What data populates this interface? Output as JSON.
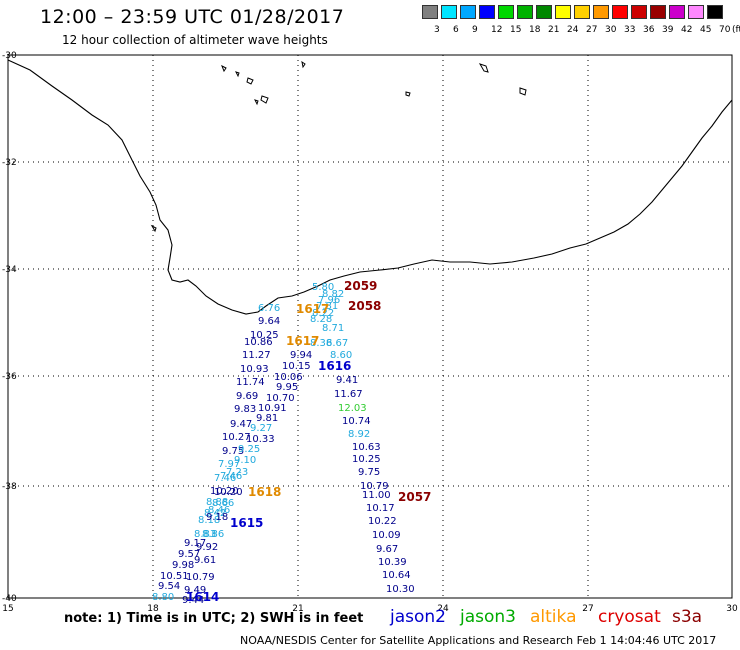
{
  "header": {
    "title": "12:00 – 23:59 UTC 01/28/2017",
    "subtitle": "12 hour collection of altimeter wave heights"
  },
  "legend": {
    "colors": [
      "#808080",
      "#00e5ff",
      "#00a8ff",
      "#0000ff",
      "#00d800",
      "#00b200",
      "#008800",
      "#ffff00",
      "#ffd000",
      "#ff9900",
      "#ff0000",
      "#cc0000",
      "#990000",
      "#cc00cc",
      "#ff88ff",
      "#000000"
    ],
    "labels": [
      "3",
      "6",
      "9",
      "12",
      "15",
      "18",
      "21",
      "24",
      "27",
      "30",
      "33",
      "36",
      "39",
      "42",
      "45",
      "70",
      "(ft)"
    ]
  },
  "axes": {
    "x_ticks": [
      "15",
      "18",
      "21",
      "24",
      "27",
      "30"
    ],
    "y_ticks": [
      "-30",
      "-32",
      "-34",
      "-36",
      "-38",
      "-40"
    ]
  },
  "passes": [
    {
      "label": "2059",
      "color": "#8b0000"
    },
    {
      "label": "2058",
      "color": "#8b0000"
    },
    {
      "label": "1617",
      "color": "#e08a00"
    },
    {
      "label": "1617",
      "color": "#e08a00"
    },
    {
      "label": "1616",
      "color": "#0000cc"
    },
    {
      "label": "1618",
      "color": "#e08a00"
    },
    {
      "label": "1615",
      "color": "#0000cc"
    },
    {
      "label": "2057",
      "color": "#8b0000"
    },
    {
      "label": "1614",
      "color": "#0000cc"
    }
  ],
  "observations": [
    {
      "v": "5.80",
      "c": "#22aadd"
    },
    {
      "v": "8.82",
      "c": "#22aadd"
    },
    {
      "v": "7.96",
      "c": "#22aadd"
    },
    {
      "v": "7.81",
      "c": "#22aadd"
    },
    {
      "v": "8.22",
      "c": "#22aadd"
    },
    {
      "v": "8.28",
      "c": "#22aadd"
    },
    {
      "v": "8.71",
      "c": "#22aadd"
    },
    {
      "v": "6.67",
      "c": "#22aadd"
    },
    {
      "v": "8.60",
      "c": "#22aadd"
    },
    {
      "v": "9.41",
      "c": "#00008b"
    },
    {
      "v": "11.67",
      "c": "#00008b"
    },
    {
      "v": "12.03",
      "c": "#33cc33"
    },
    {
      "v": "10.74",
      "c": "#00008b"
    },
    {
      "v": "8.92",
      "c": "#22aadd"
    },
    {
      "v": "10.63",
      "c": "#00008b"
    },
    {
      "v": "10.25",
      "c": "#00008b"
    },
    {
      "v": "9.75",
      "c": "#00008b"
    },
    {
      "v": "10.79",
      "c": "#00008b"
    },
    {
      "v": "11.00",
      "c": "#00008b"
    },
    {
      "v": "10.17",
      "c": "#00008b"
    },
    {
      "v": "10.22",
      "c": "#00008b"
    },
    {
      "v": "10.09",
      "c": "#00008b"
    },
    {
      "v": "9.67",
      "c": "#00008b"
    },
    {
      "v": "10.39",
      "c": "#00008b"
    },
    {
      "v": "10.64",
      "c": "#00008b"
    },
    {
      "v": "10.30",
      "c": "#00008b"
    },
    {
      "v": "6.76",
      "c": "#22aadd"
    },
    {
      "v": "9.64",
      "c": "#00008b"
    },
    {
      "v": "10.25",
      "c": "#00008b"
    },
    {
      "v": "10.86",
      "c": "#00008b"
    },
    {
      "v": "11.27",
      "c": "#00008b"
    },
    {
      "v": "10.93",
      "c": "#00008b"
    },
    {
      "v": "11.74",
      "c": "#00008b"
    },
    {
      "v": "9.69",
      "c": "#00008b"
    },
    {
      "v": "9.83",
      "c": "#00008b"
    },
    {
      "v": "9.47",
      "c": "#00008b"
    },
    {
      "v": "10.27",
      "c": "#00008b"
    },
    {
      "v": "9.75",
      "c": "#00008b"
    },
    {
      "v": "7.97",
      "c": "#22aadd"
    },
    {
      "v": "7.46",
      "c": "#22aadd"
    },
    {
      "v": "10.20",
      "c": "#00008b"
    },
    {
      "v": "8.88",
      "c": "#22aadd"
    },
    {
      "v": "8.42",
      "c": "#22aadd"
    },
    {
      "v": "8.18",
      "c": "#22aadd"
    },
    {
      "v": "8.83",
      "c": "#22aadd"
    },
    {
      "v": "9.17",
      "c": "#00008b"
    },
    {
      "v": "9.57",
      "c": "#00008b"
    },
    {
      "v": "9.98",
      "c": "#00008b"
    },
    {
      "v": "10.51",
      "c": "#00008b"
    },
    {
      "v": "9.54",
      "c": "#00008b"
    },
    {
      "v": "8.80",
      "c": "#22aadd"
    },
    {
      "v": "8.38",
      "c": "#22aadd"
    },
    {
      "v": "9.94",
      "c": "#00008b"
    },
    {
      "v": "10.15",
      "c": "#00008b"
    },
    {
      "v": "10.06",
      "c": "#00008b"
    },
    {
      "v": "9.95",
      "c": "#00008b"
    },
    {
      "v": "10.70",
      "c": "#00008b"
    },
    {
      "v": "10.91",
      "c": "#00008b"
    },
    {
      "v": "9.81",
      "c": "#00008b"
    },
    {
      "v": "9.27",
      "c": "#22aadd"
    },
    {
      "v": "10.33",
      "c": "#00008b"
    },
    {
      "v": "9.25",
      "c": "#22aadd"
    },
    {
      "v": "9.10",
      "c": "#22aadd"
    },
    {
      "v": "7.23",
      "c": "#22aadd"
    },
    {
      "v": "7.46",
      "c": "#22aadd"
    },
    {
      "v": "10.20",
      "c": "#00008b"
    },
    {
      "v": "8.66",
      "c": "#22aadd"
    },
    {
      "v": "8.46",
      "c": "#22aadd"
    },
    {
      "v": "9.18",
      "c": "#00008b"
    },
    {
      "v": "8.86",
      "c": "#22aadd"
    },
    {
      "v": "9.92",
      "c": "#00008b"
    },
    {
      "v": "9.61",
      "c": "#00008b"
    },
    {
      "v": "10.79",
      "c": "#00008b"
    },
    {
      "v": "9.49",
      "c": "#00008b"
    },
    {
      "v": "9.44",
      "c": "#00008b"
    }
  ],
  "footer": {
    "note": "note: 1) Time is in UTC; 2) SWH is in feet",
    "satellites": [
      {
        "name": "jason2",
        "color": "#0000cc"
      },
      {
        "name": "jason3",
        "color": "#00aa00"
      },
      {
        "name": "altika",
        "color": "#ff9900"
      },
      {
        "name": "cryosat",
        "color": "#dd0000"
      },
      {
        "name": "s3a",
        "color": "#8b0000"
      }
    ],
    "credit": "NOAA/NESDIS Center for Satellite Applications and Research    Feb  1 14:04:46 UTC 2017"
  }
}
